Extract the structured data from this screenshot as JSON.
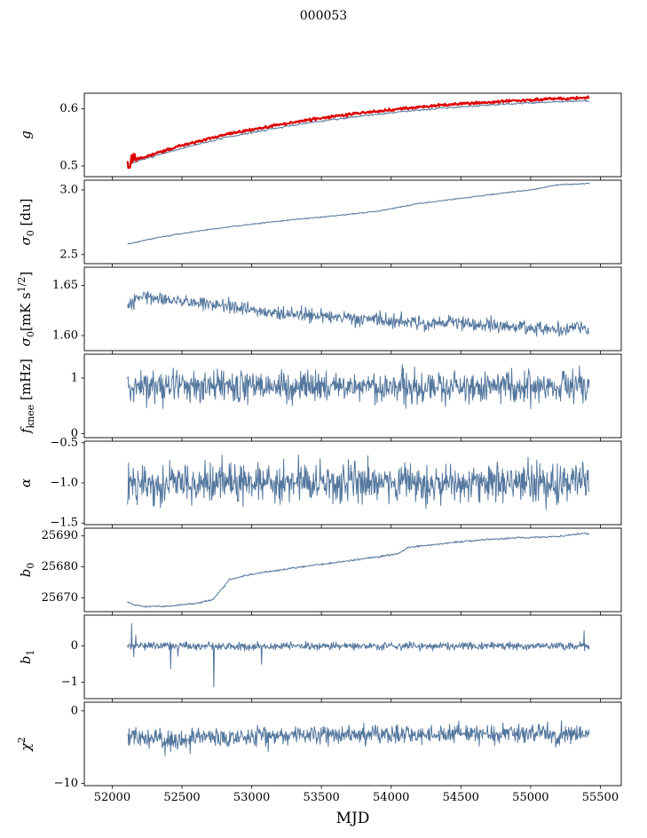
{
  "chart_data": {
    "type": "line",
    "title": "000053",
    "xlabel": "MJD",
    "xlim": [
      51800,
      55650
    ],
    "x_data_range": [
      52110,
      55420
    ],
    "xticks": [
      {
        "v": 52000,
        "label": "52000"
      },
      {
        "v": 52500,
        "label": "52500"
      },
      {
        "v": 53000,
        "label": "53000"
      },
      {
        "v": 53500,
        "label": "53500"
      },
      {
        "v": 54000,
        "label": "54000"
      },
      {
        "v": 54500,
        "label": "54500"
      },
      {
        "v": 55000,
        "label": "55000"
      },
      {
        "v": 55500,
        "label": "55500"
      }
    ],
    "colors": {
      "line": "#54779e",
      "highlight": "#dd0000",
      "axis": "#000000"
    },
    "panels": [
      {
        "name": "g",
        "ylabel": [
          {
            "t": "g",
            "italic": true
          }
        ],
        "ylim": [
          0.4815,
          0.627
        ],
        "yticks": [
          {
            "v": 0.5,
            "label": "0.5"
          },
          {
            "v": 0.6,
            "label": "0.6"
          }
        ],
        "series": [
          {
            "name": "g-secondary",
            "color": "#54779e",
            "width": 1,
            "points": 620,
            "seed": 7,
            "amp": 0.003,
            "trend": [
              [
                52110,
                0.503
              ],
              [
                52300,
                0.517
              ],
              [
                52500,
                0.531
              ],
              [
                52800,
                0.549
              ],
              [
                53100,
                0.563
              ],
              [
                53400,
                0.575
              ],
              [
                53700,
                0.585
              ],
              [
                54000,
                0.593
              ],
              [
                54300,
                0.6
              ],
              [
                54600,
                0.605
              ],
              [
                54900,
                0.609
              ],
              [
                55150,
                0.612
              ],
              [
                55420,
                0.614
              ]
            ]
          },
          {
            "name": "g-primary",
            "color": "#dd0000",
            "width": 2.2,
            "points": 700,
            "seed": 8,
            "amp": 0.004,
            "burst": {
              "x0": 52105,
              "x1": 52175,
              "amp": 0.012
            },
            "trend": [
              [
                52110,
                0.507
              ],
              [
                52300,
                0.521
              ],
              [
                52500,
                0.536
              ],
              [
                52800,
                0.554
              ],
              [
                53100,
                0.568
              ],
              [
                53400,
                0.58
              ],
              [
                53700,
                0.59
              ],
              [
                54000,
                0.598
              ],
              [
                54300,
                0.605
              ],
              [
                54600,
                0.61
              ],
              [
                54900,
                0.614
              ],
              [
                55150,
                0.617
              ],
              [
                55420,
                0.619
              ]
            ]
          }
        ]
      },
      {
        "name": "sigma0-du",
        "ylabel": [
          {
            "t": "σ",
            "italic": true
          },
          {
            "t": "0",
            "sub": true
          },
          {
            "t": " [du]"
          }
        ],
        "ylim": [
          2.43,
          3.075
        ],
        "yticks": [
          {
            "v": 2.5,
            "label": "2.5"
          },
          {
            "v": 3.0,
            "label": "3.0"
          }
        ],
        "series": [
          {
            "name": "sigma0-du",
            "color": "#54779e",
            "width": 1,
            "points": 650,
            "seed": 21,
            "amp": 0.008,
            "trend": [
              [
                52130,
                2.585
              ],
              [
                52250,
                2.615
              ],
              [
                52450,
                2.655
              ],
              [
                52700,
                2.695
              ],
              [
                53000,
                2.735
              ],
              [
                53300,
                2.77
              ],
              [
                53600,
                2.8
              ],
              [
                53900,
                2.835
              ],
              [
                54200,
                2.895
              ],
              [
                54500,
                2.935
              ],
              [
                54800,
                2.975
              ],
              [
                55000,
                3.0
              ],
              [
                55200,
                3.04
              ],
              [
                55420,
                3.05
              ]
            ]
          }
        ]
      },
      {
        "name": "sigma0-mks",
        "ylabel": [
          {
            "t": "σ",
            "italic": true
          },
          {
            "t": "0",
            "sub": true
          },
          {
            "t": "[mK s"
          },
          {
            "t": "1/2",
            "sup": true
          },
          {
            "t": "]"
          }
        ],
        "ylim": [
          1.585,
          1.668
        ],
        "yticks": [
          {
            "v": 1.6,
            "label": "1.60"
          },
          {
            "v": 1.65,
            "label": "1.65"
          }
        ],
        "series": [
          {
            "name": "sigma0-mks",
            "color": "#54779e",
            "width": 1,
            "points": 800,
            "seed": 31,
            "amp": 0.012,
            "trend": [
              [
                52130,
                1.629
              ],
              [
                52220,
                1.641
              ],
              [
                52350,
                1.637
              ],
              [
                52600,
                1.633
              ],
              [
                52900,
                1.627
              ],
              [
                53200,
                1.622
              ],
              [
                53500,
                1.619
              ],
              [
                53900,
                1.615
              ],
              [
                54300,
                1.613
              ],
              [
                54700,
                1.611
              ],
              [
                55000,
                1.608
              ],
              [
                55250,
                1.606
              ],
              [
                55350,
                1.612
              ],
              [
                55420,
                1.603
              ]
            ]
          }
        ]
      },
      {
        "name": "fknee",
        "ylabel": [
          {
            "t": "f",
            "italic": true
          },
          {
            "t": "knee",
            "sub": true
          },
          {
            "t": " [mHz]"
          }
        ],
        "ylim": [
          -0.07,
          1.43
        ],
        "yticks": [
          {
            "v": 0,
            "label": "0"
          },
          {
            "v": 1,
            "label": "1"
          }
        ],
        "series": [
          {
            "name": "fknee",
            "color": "#54779e",
            "width": 1,
            "points": 900,
            "seed": 41,
            "amp": 0.5,
            "trend": [
              [
                52110,
                0.85
              ],
              [
                55420,
                0.85
              ]
            ]
          }
        ]
      },
      {
        "name": "alpha",
        "ylabel": [
          {
            "t": "α",
            "italic": true
          }
        ],
        "ylim": [
          -1.52,
          -0.48
        ],
        "yticks": [
          {
            "v": -0.5,
            "label": "−0.5"
          },
          {
            "v": -1.0,
            "label": "−1.0"
          },
          {
            "v": -1.5,
            "label": "−1.5"
          }
        ],
        "series": [
          {
            "name": "alpha",
            "color": "#54779e",
            "width": 1,
            "points": 900,
            "seed": 51,
            "amp": 0.42,
            "trend": [
              [
                52110,
                -1.0
              ],
              [
                55420,
                -1.0
              ]
            ]
          }
        ]
      },
      {
        "name": "b0",
        "ylabel": [
          {
            "t": "b",
            "italic": true
          },
          {
            "t": "0",
            "sub": true
          }
        ],
        "ylim": [
          25665.5,
          25692.5
        ],
        "yticks": [
          {
            "v": 25670,
            "label": "25670"
          },
          {
            "v": 25680,
            "label": "25680"
          },
          {
            "v": 25690,
            "label": "25690"
          }
        ],
        "series": [
          {
            "name": "b0",
            "color": "#54779e",
            "width": 1,
            "points": 700,
            "seed": 61,
            "amp": 0.5,
            "trend": [
              [
                52110,
                25668.6
              ],
              [
                52160,
                25667.6
              ],
              [
                52260,
                25667.1
              ],
              [
                52420,
                25667.3
              ],
              [
                52600,
                25668.2
              ],
              [
                52720,
                25669.3
              ],
              [
                52780,
                25672.5
              ],
              [
                52840,
                25675.8
              ],
              [
                52950,
                25677.2
              ],
              [
                53100,
                25678.3
              ],
              [
                53300,
                25679.6
              ],
              [
                53500,
                25680.8
              ],
              [
                53700,
                25682.0
              ],
              [
                53900,
                25683.2
              ],
              [
                54050,
                25684.3
              ],
              [
                54120,
                25686.2
              ],
              [
                54300,
                25687.2
              ],
              [
                54500,
                25688.1
              ],
              [
                54700,
                25688.9
              ],
              [
                54900,
                25689.4
              ],
              [
                55100,
                25689.6
              ],
              [
                55250,
                25690.1
              ],
              [
                55380,
                25690.9
              ],
              [
                55420,
                25690.7
              ]
            ]
          }
        ]
      },
      {
        "name": "b1",
        "ylabel": [
          {
            "t": "b",
            "italic": true
          },
          {
            "t": "1",
            "sub": true
          }
        ],
        "ylim": [
          -1.45,
          0.85
        ],
        "yticks": [
          {
            "v": 0,
            "label": "0"
          },
          {
            "v": -1,
            "label": "−1"
          }
        ],
        "series": [
          {
            "name": "b1",
            "color": "#54779e",
            "width": 1,
            "points": 900,
            "seed": 71,
            "amp": 0.18,
            "trend": [
              [
                52110,
                0
              ],
              [
                55420,
                0
              ]
            ],
            "spikes": [
              [
                52140,
                0.62
              ],
              [
                52155,
                -0.3
              ],
              [
                52170,
                0.3
              ],
              [
                52420,
                -0.62
              ],
              [
                52470,
                -0.28
              ],
              [
                52730,
                -1.13
              ],
              [
                53070,
                -0.5
              ],
              [
                55385,
                0.42
              ]
            ]
          }
        ]
      },
      {
        "name": "chi2",
        "ylabel": [
          {
            "t": "χ",
            "italic": true
          },
          {
            "t": "2",
            "sup": true
          }
        ],
        "ylim": [
          -10.3,
          1.2
        ],
        "yticks": [
          {
            "v": 0,
            "label": "0"
          },
          {
            "v": -10,
            "label": "−10"
          }
        ],
        "series": [
          {
            "name": "chi2",
            "color": "#54779e",
            "width": 1,
            "points": 900,
            "seed": 81,
            "amp": 2.2,
            "trend": [
              [
                52110,
                -3.3
              ],
              [
                52300,
                -3.8
              ],
              [
                52450,
                -4.2
              ],
              [
                52600,
                -3.6
              ],
              [
                53000,
                -3.6
              ],
              [
                53500,
                -3.2
              ],
              [
                54000,
                -3.4
              ],
              [
                54500,
                -3.2
              ],
              [
                55000,
                -3.2
              ],
              [
                55420,
                -3.3
              ]
            ],
            "spikes": [
              [
                52380,
                -6.2
              ],
              [
                52560,
                -5.9
              ],
              [
                53120,
                -5.6
              ]
            ]
          }
        ]
      }
    ]
  }
}
